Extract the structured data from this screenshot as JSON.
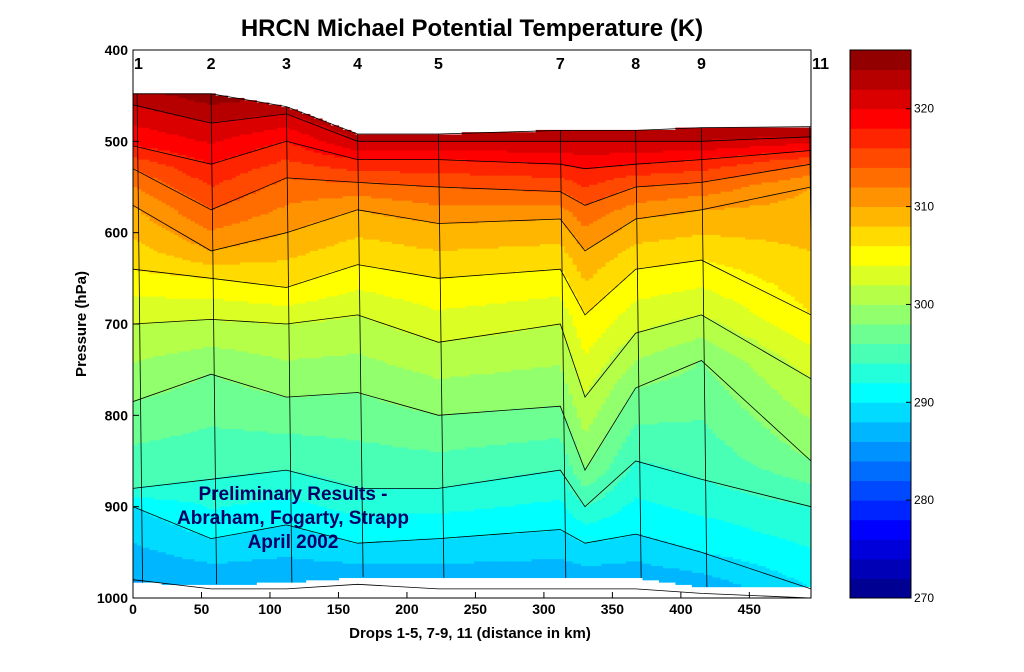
{
  "chart_data": {
    "type": "filled-contour",
    "title": "HRCN Michael Potential Temperature (K)",
    "xlabel": "Drops 1-5, 7-9, 11 (distance in km)",
    "ylabel": "Pressure (hPa)",
    "xlim": [
      0,
      495
    ],
    "ylim": [
      1000,
      400
    ],
    "y_reversed": true,
    "xticks": [
      0,
      50,
      100,
      150,
      200,
      250,
      300,
      350,
      400,
      450
    ],
    "yticks": [
      400,
      500,
      600,
      700,
      800,
      900,
      1000
    ],
    "colorbar": {
      "range": [
        270,
        326
      ],
      "ticks": [
        270,
        280,
        290,
        300,
        310,
        320
      ],
      "levels": 28
    },
    "drops": [
      {
        "label": "1",
        "x": 3
      },
      {
        "label": "2",
        "x": 57
      },
      {
        "label": "3",
        "x": 112
      },
      {
        "label": "4",
        "x": 164
      },
      {
        "label": "5",
        "x": 223
      },
      {
        "label": "7",
        "x": 312
      },
      {
        "label": "8",
        "x": 367
      },
      {
        "label": "9",
        "x": 415
      },
      {
        "label": "11",
        "x": 494
      }
    ],
    "profiles": [
      {
        "x": 0,
        "top": 448,
        "bottom": 983,
        "iso": {
          "322": 460,
          "318": 505,
          "314": 530,
          "310": 570,
          "306": 640,
          "302": 700,
          "298": 785,
          "294": 880,
          "290": 900,
          "286": 980
        }
      },
      {
        "x": 57,
        "top": 448,
        "bottom": 985,
        "iso": {
          "322": 480,
          "318": 525,
          "314": 575,
          "310": 620,
          "306": 650,
          "302": 695,
          "298": 755,
          "294": 870,
          "290": 935,
          "286": 990
        }
      },
      {
        "x": 112,
        "top": 462,
        "bottom": 983,
        "iso": {
          "322": 470,
          "318": 500,
          "314": 540,
          "310": 600,
          "306": 660,
          "302": 700,
          "298": 780,
          "294": 860,
          "290": 920,
          "286": 990
        }
      },
      {
        "x": 164,
        "top": 492,
        "bottom": 977,
        "iso": {
          "322": 500,
          "318": 520,
          "314": 545,
          "310": 575,
          "306": 635,
          "302": 690,
          "298": 775,
          "294": 880,
          "290": 940,
          "286": 985
        }
      },
      {
        "x": 223,
        "top": 492,
        "bottom": 978,
        "iso": {
          "322": 500,
          "318": 520,
          "314": 550,
          "310": 590,
          "306": 650,
          "302": 720,
          "298": 800,
          "294": 880,
          "290": 935,
          "286": 990
        }
      },
      {
        "x": 312,
        "top": 488,
        "bottom": 978,
        "iso": {
          "322": 500,
          "318": 525,
          "314": 555,
          "310": 585,
          "306": 640,
          "302": 700,
          "298": 790,
          "294": 860,
          "290": 925,
          "286": 990
        }
      },
      {
        "x": 330,
        "top": 488,
        "bottom": 978,
        "iso": {
          "322": 500,
          "318": 530,
          "314": 570,
          "310": 620,
          "306": 690,
          "302": 780,
          "298": 860,
          "294": 900,
          "290": 940,
          "286": 990
        }
      },
      {
        "x": 367,
        "top": 488,
        "bottom": 978,
        "iso": {
          "322": 500,
          "318": 525,
          "314": 550,
          "310": 585,
          "306": 640,
          "302": 710,
          "298": 770,
          "294": 850,
          "290": 930,
          "286": 990
        }
      },
      {
        "x": 415,
        "top": 485,
        "bottom": 988,
        "iso": {
          "322": 500,
          "318": 520,
          "314": 545,
          "310": 575,
          "306": 630,
          "302": 690,
          "298": 740,
          "294": 870,
          "290": 950,
          "286": 995
        }
      },
      {
        "x": 495,
        "top": 484,
        "bottom": 988,
        "iso": {
          "322": 495,
          "318": 510,
          "314": 525,
          "310": 550,
          "306": 690,
          "302": 760,
          "298": 850,
          "294": 900,
          "290": 990,
          "286": 1000
        }
      }
    ]
  },
  "annotation": {
    "line1": "Preliminary Results -",
    "line2": "Abraham, Fogarty, Strapp",
    "line3": "April 2002"
  }
}
